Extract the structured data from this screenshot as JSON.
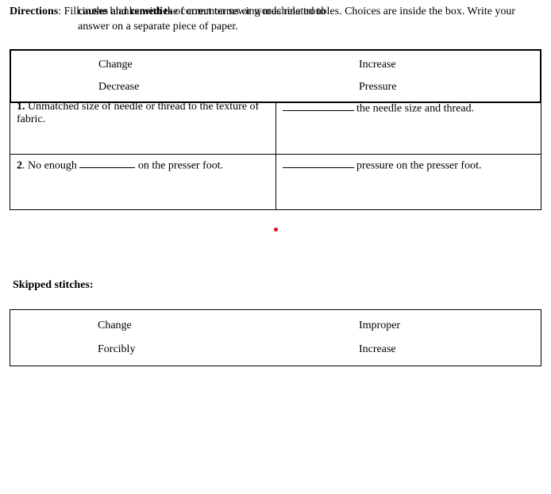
{
  "directions": {
    "label": "Directions",
    "text_part1": ": Fill in the blanks with the correct terms or words related to ",
    "bold1": "causes",
    "and": " and ",
    "bold2": "remedies",
    "text_part2": " of common sewing machine troubles. Choices are inside the box.  Write your answer on a separate piece of paper."
  },
  "choices1": {
    "r1c1": "Change",
    "r1c2": "Increase",
    "r2c1": "Decrease",
    "r2c2": "Pressure"
  },
  "qa": {
    "q1_num": "1.",
    "q1_text_a": " Unmatched size of needle or thread to the texture of fabric.",
    "q1_right": " the needle size and thread.",
    "q2_num": "2",
    "q2_text_a": ". No enough ",
    "q2_text_b": " on the presser foot.",
    "q2_right": " pressure on the presser foot."
  },
  "section2_title": "Skipped stitches:",
  "choices2": {
    "r1c1": "Change",
    "r1c2": "Improper",
    "r2c1": "Forcibly",
    "r2c2": "Increase"
  }
}
